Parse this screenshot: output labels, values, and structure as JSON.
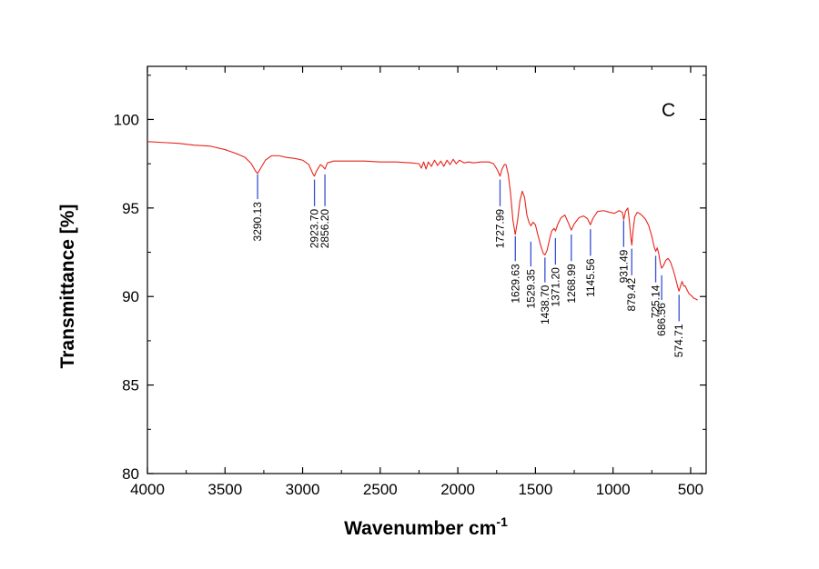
{
  "chart_data": {
    "type": "line",
    "panel_label": "C",
    "xlabel": "Wavenumber cm",
    "xlabel_superscript": "-1",
    "ylabel": "Transmittance [%]",
    "xlim": [
      4000,
      400
    ],
    "ylim": [
      80,
      103
    ],
    "x_ticks": [
      4000,
      3500,
      3000,
      2500,
      2000,
      1500,
      1000,
      500
    ],
    "y_ticks": [
      80,
      85,
      90,
      95,
      100
    ],
    "grid": false,
    "line_color": "#e8241c",
    "marker_color": "#3a4fd6",
    "series": [
      {
        "points": [
          [
            4000,
            98.75
          ],
          [
            3900,
            98.7
          ],
          [
            3800,
            98.65
          ],
          [
            3700,
            98.55
          ],
          [
            3600,
            98.5
          ],
          [
            3500,
            98.3
          ],
          [
            3420,
            98.05
          ],
          [
            3370,
            97.85
          ],
          [
            3330,
            97.5
          ],
          [
            3305,
            97.1
          ],
          [
            3290,
            96.95
          ],
          [
            3270,
            97.25
          ],
          [
            3240,
            97.7
          ],
          [
            3200,
            97.95
          ],
          [
            3150,
            97.95
          ],
          [
            3100,
            97.85
          ],
          [
            3050,
            97.8
          ],
          [
            3000,
            97.7
          ],
          [
            2960,
            97.45
          ],
          [
            2935,
            96.95
          ],
          [
            2924,
            96.8
          ],
          [
            2910,
            97.1
          ],
          [
            2885,
            97.45
          ],
          [
            2870,
            97.35
          ],
          [
            2856,
            97.2
          ],
          [
            2840,
            97.55
          ],
          [
            2800,
            97.65
          ],
          [
            2700,
            97.65
          ],
          [
            2600,
            97.65
          ],
          [
            2500,
            97.6
          ],
          [
            2400,
            97.6
          ],
          [
            2300,
            97.55
          ],
          [
            2250,
            97.5
          ],
          [
            2235,
            97.25
          ],
          [
            2220,
            97.6
          ],
          [
            2205,
            97.2
          ],
          [
            2190,
            97.6
          ],
          [
            2170,
            97.35
          ],
          [
            2150,
            97.7
          ],
          [
            2130,
            97.4
          ],
          [
            2110,
            97.65
          ],
          [
            2090,
            97.35
          ],
          [
            2070,
            97.7
          ],
          [
            2050,
            97.45
          ],
          [
            2030,
            97.75
          ],
          [
            2010,
            97.5
          ],
          [
            1990,
            97.7
          ],
          [
            1960,
            97.55
          ],
          [
            1930,
            97.6
          ],
          [
            1900,
            97.55
          ],
          [
            1850,
            97.6
          ],
          [
            1800,
            97.6
          ],
          [
            1770,
            97.5
          ],
          [
            1745,
            97.15
          ],
          [
            1728,
            96.8
          ],
          [
            1715,
            97.2
          ],
          [
            1700,
            97.45
          ],
          [
            1690,
            97.45
          ],
          [
            1675,
            96.9
          ],
          [
            1660,
            95.8
          ],
          [
            1645,
            94.3
          ],
          [
            1630,
            93.5
          ],
          [
            1615,
            94.3
          ],
          [
            1600,
            95.4
          ],
          [
            1585,
            95.95
          ],
          [
            1570,
            95.6
          ],
          [
            1555,
            94.6
          ],
          [
            1540,
            94.15
          ],
          [
            1529,
            94.0
          ],
          [
            1515,
            94.2
          ],
          [
            1500,
            94.05
          ],
          [
            1485,
            93.5
          ],
          [
            1465,
            92.85
          ],
          [
            1450,
            92.45
          ],
          [
            1439,
            92.35
          ],
          [
            1425,
            92.6
          ],
          [
            1410,
            93.2
          ],
          [
            1395,
            93.7
          ],
          [
            1380,
            93.85
          ],
          [
            1371,
            93.7
          ],
          [
            1355,
            94.1
          ],
          [
            1335,
            94.45
          ],
          [
            1310,
            94.6
          ],
          [
            1290,
            94.2
          ],
          [
            1269,
            93.75
          ],
          [
            1250,
            94.1
          ],
          [
            1220,
            94.45
          ],
          [
            1190,
            94.55
          ],
          [
            1165,
            94.4
          ],
          [
            1146,
            94.05
          ],
          [
            1130,
            94.4
          ],
          [
            1100,
            94.8
          ],
          [
            1060,
            94.85
          ],
          [
            1020,
            94.75
          ],
          [
            990,
            94.7
          ],
          [
            960,
            94.85
          ],
          [
            940,
            94.75
          ],
          [
            931,
            94.35
          ],
          [
            920,
            94.8
          ],
          [
            905,
            95.0
          ],
          [
            895,
            94.3
          ],
          [
            885,
            93.3
          ],
          [
            879,
            92.9
          ],
          [
            870,
            93.8
          ],
          [
            860,
            94.5
          ],
          [
            845,
            94.75
          ],
          [
            830,
            94.7
          ],
          [
            810,
            94.55
          ],
          [
            790,
            94.35
          ],
          [
            770,
            94.0
          ],
          [
            750,
            93.4
          ],
          [
            735,
            92.8
          ],
          [
            725,
            92.55
          ],
          [
            715,
            92.75
          ],
          [
            705,
            92.4
          ],
          [
            695,
            91.85
          ],
          [
            687,
            91.6
          ],
          [
            675,
            91.75
          ],
          [
            660,
            92.05
          ],
          [
            645,
            92.15
          ],
          [
            630,
            91.95
          ],
          [
            612,
            91.5
          ],
          [
            595,
            90.95
          ],
          [
            585,
            90.6
          ],
          [
            575,
            90.3
          ],
          [
            565,
            90.6
          ],
          [
            555,
            90.85
          ],
          [
            545,
            90.6
          ],
          [
            535,
            90.6
          ],
          [
            525,
            90.4
          ],
          [
            510,
            90.15
          ],
          [
            495,
            90.05
          ],
          [
            480,
            89.9
          ],
          [
            465,
            89.85
          ],
          [
            455,
            89.8
          ]
        ]
      }
    ],
    "peaks": [
      {
        "x": 3290.13,
        "label": "3290.13",
        "y_top": 96.9,
        "y_bottom": 95.5
      },
      {
        "x": 2923.7,
        "label": "2923.70",
        "y_top": 96.6,
        "y_bottom": 95.1
      },
      {
        "x": 2856.2,
        "label": "2856.20",
        "y_top": 96.9,
        "y_bottom": 95.1
      },
      {
        "x": 1727.99,
        "label": "1727.99",
        "y_top": 96.6,
        "y_bottom": 95.1
      },
      {
        "x": 1629.63,
        "label": "1629.63",
        "y_top": 93.4,
        "y_bottom": 92.0
      },
      {
        "x": 1529.35,
        "label": "1529.35",
        "y_top": 93.1,
        "y_bottom": 91.7
      },
      {
        "x": 1438.7,
        "label": "1438.70",
        "y_top": 92.2,
        "y_bottom": 90.8
      },
      {
        "x": 1371.2,
        "label": "1371.20",
        "y_top": 93.3,
        "y_bottom": 91.8
      },
      {
        "x": 1268.99,
        "label": "1268.99",
        "y_top": 93.5,
        "y_bottom": 92.0
      },
      {
        "x": 1145.56,
        "label": "1145.56",
        "y_top": 93.8,
        "y_bottom": 92.3
      },
      {
        "x": 931.49,
        "label": "931.49",
        "y_top": 94.3,
        "y_bottom": 92.8
      },
      {
        "x": 879.42,
        "label": "879.42",
        "y_top": 92.7,
        "y_bottom": 91.2
      },
      {
        "x": 725.14,
        "label": "725.14",
        "y_top": 92.3,
        "y_bottom": 90.8
      },
      {
        "x": 686.56,
        "label": "686.56",
        "y_top": 91.2,
        "y_bottom": 89.8
      },
      {
        "x": 574.71,
        "label": "574.71",
        "y_top": 90.1,
        "y_bottom": 88.6
      }
    ]
  }
}
